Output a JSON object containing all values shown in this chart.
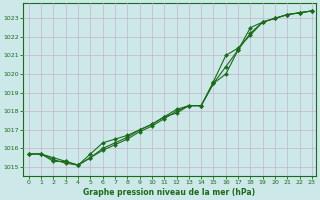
{
  "xlabel": "Graphe pression niveau de la mer (hPa)",
  "bg_color": "#cce8e8",
  "grid_color": "#c8b4c8",
  "line_color": "#1a6b1a",
  "x_min": 0,
  "x_max": 23,
  "y_min": 1014.5,
  "y_max": 1023.8,
  "yticks": [
    1015,
    1016,
    1017,
    1018,
    1019,
    1020,
    1021,
    1022,
    1023
  ],
  "xticks": [
    0,
    1,
    2,
    3,
    4,
    5,
    6,
    7,
    8,
    9,
    10,
    11,
    12,
    13,
    14,
    15,
    16,
    17,
    18,
    19,
    20,
    21,
    22,
    23
  ],
  "line1_x": [
    0,
    1,
    2,
    3,
    4,
    5,
    6,
    7,
    8,
    9,
    10,
    11,
    12,
    13,
    14,
    15,
    16,
    17,
    18,
    19,
    20,
    21,
    22,
    23
  ],
  "line1_y": [
    1015.7,
    1015.7,
    1015.5,
    1015.3,
    1015.1,
    1015.5,
    1016.0,
    1016.3,
    1016.6,
    1017.0,
    1017.3,
    1017.7,
    1017.9,
    1018.3,
    1018.3,
    1019.5,
    1020.0,
    1021.3,
    1022.5,
    1022.8,
    1023.0,
    1023.2,
    1023.3,
    1023.4
  ],
  "line2_x": [
    0,
    1,
    2,
    3,
    4,
    5,
    6,
    7,
    8,
    9,
    10,
    11,
    12,
    13,
    14,
    15,
    16,
    17,
    18,
    19,
    20,
    21,
    22,
    23
  ],
  "line2_y": [
    1015.7,
    1015.7,
    1015.4,
    1015.2,
    1015.1,
    1015.7,
    1016.3,
    1016.5,
    1016.7,
    1017.0,
    1017.3,
    1017.7,
    1018.1,
    1018.3,
    1018.3,
    1019.6,
    1021.0,
    1021.4,
    1022.1,
    1022.8,
    1023.0,
    1023.2,
    1023.3,
    1023.4
  ],
  "line3_x": [
    0,
    1,
    2,
    3,
    4,
    5,
    6,
    7,
    8,
    9,
    10,
    11,
    12,
    13,
    14,
    15,
    16,
    17,
    18,
    19,
    20,
    21,
    22,
    23
  ],
  "line3_y": [
    1015.7,
    1015.7,
    1015.3,
    1015.3,
    1015.1,
    1015.5,
    1015.9,
    1016.2,
    1016.5,
    1016.9,
    1017.2,
    1017.6,
    1018.0,
    1018.3,
    1018.3,
    1019.5,
    1020.4,
    1021.3,
    1022.2,
    1022.8,
    1023.0,
    1023.2,
    1023.3,
    1023.4
  ]
}
